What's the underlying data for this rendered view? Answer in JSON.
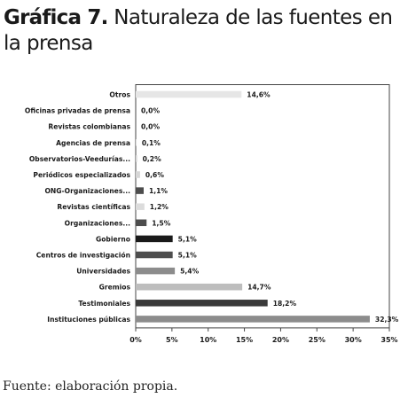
{
  "title": {
    "lead": "Gráfica 7.",
    "rest": " Naturaleza de las fuentes en la prensa"
  },
  "source": "Fuente: elaboración propia.",
  "chart_data": {
    "type": "bar",
    "orientation": "horizontal",
    "categories": [
      "Otros",
      "Oficinas privadas de prensa",
      "Revistas colombianas",
      "Agencias de prensa",
      "Observatorios-Veedurías...",
      "Periódicos especializados",
      "ONG-Organizaciones...",
      "Revistas científicas",
      "Organizaciones...",
      "Gobierno",
      "Centros de investigación",
      "Universidades",
      "Gremios",
      "Testimoniales",
      "Instituciones públicas"
    ],
    "values": [
      14.6,
      0.0,
      0.0,
      0.1,
      0.2,
      0.6,
      1.1,
      1.2,
      1.5,
      5.1,
      5.1,
      5.4,
      14.7,
      18.2,
      32.3
    ],
    "value_labels": [
      "14,6%",
      "0,0%",
      "0,0%",
      "0,1%",
      "0,2%",
      "0,6%",
      "1,1%",
      "1,2%",
      "1,5%",
      "5,1%",
      "5,1%",
      "5,4%",
      "14,7%",
      "18,2%",
      "32,3%"
    ],
    "bar_colors": [
      "#e6e6e6",
      "#d6d6d6",
      "#d6d6d6",
      "#d6d6d6",
      "#d6d6d6",
      "#d6d6d6",
      "#4d4d4d",
      "#dcdcdc",
      "#4d4d4d",
      "#1a1a1a",
      "#4d4d4d",
      "#8c8c8c",
      "#bdbdbd",
      "#3a3a3a",
      "#8c8c8c"
    ],
    "xlim": [
      0,
      35
    ],
    "xticks": [
      0,
      5,
      10,
      15,
      20,
      25,
      30,
      35
    ],
    "xtick_labels": [
      "0%",
      "5%",
      "10%",
      "15%",
      "20%",
      "25%",
      "30%",
      "35%"
    ],
    "grid": false,
    "legend": "none"
  }
}
